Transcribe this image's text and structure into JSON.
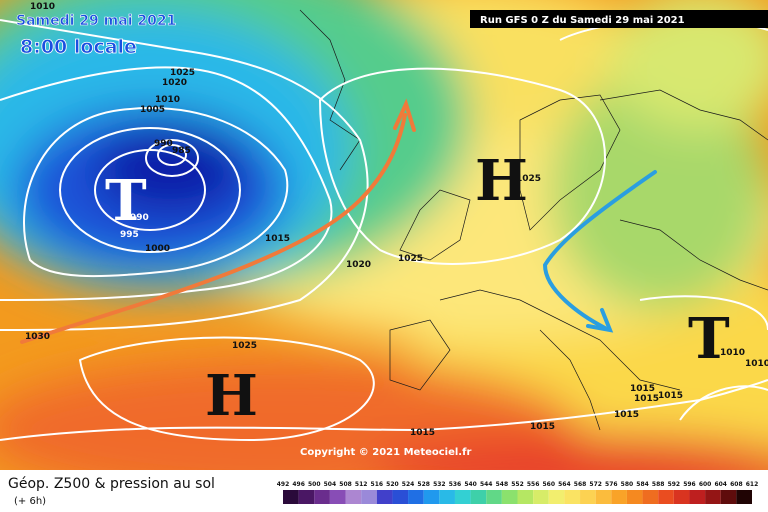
{
  "header": {
    "date": "Samedi 29 mai 2021",
    "time": "8:00 locale",
    "run": "Run GFS 0 Z du Samedi 29 mai 2021"
  },
  "map": {
    "pressure_centers": [
      "T",
      "H",
      "H",
      "T"
    ],
    "isobar_labels": [
      1010,
      1025,
      1020,
      1010,
      1005,
      990,
      985,
      990,
      995,
      1000,
      1015,
      1020,
      1025,
      1025,
      1030,
      1025,
      1010,
      1010,
      1015,
      1015,
      1015,
      1015,
      1015,
      1015
    ],
    "copyright": "Copyright © 2021 Meteociel.fr"
  },
  "legend": {
    "title": "Géop. Z500 & pression au sol",
    "lead": "(+ 6h)",
    "scale": [
      492,
      496,
      500,
      504,
      508,
      512,
      516,
      520,
      524,
      528,
      532,
      536,
      540,
      544,
      548,
      552,
      556,
      560,
      564,
      568,
      572,
      576,
      580,
      584,
      588,
      592,
      596,
      600,
      604,
      608,
      612
    ]
  }
}
